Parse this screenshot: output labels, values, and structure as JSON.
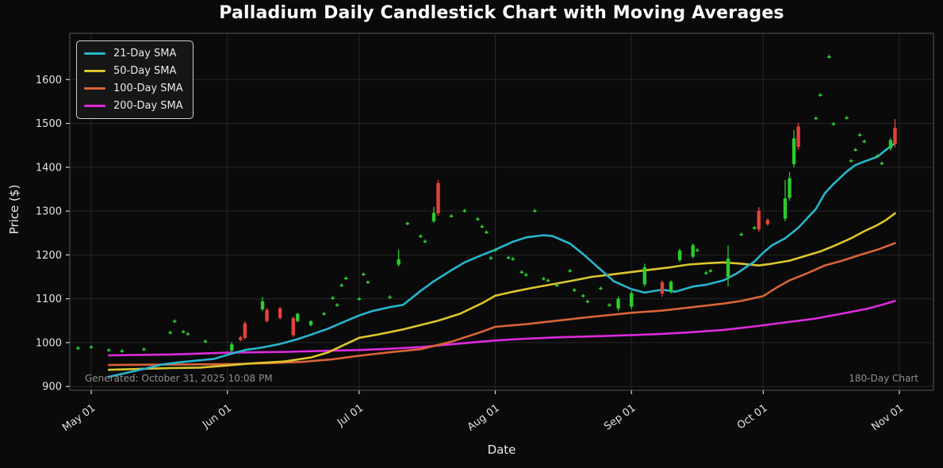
{
  "title": "Palladium Daily Candlestick Chart with Moving Averages",
  "x_axis_label": "Date",
  "y_axis_label": "Price ($)",
  "footnotes": {
    "generated": "Generated: October 31, 2025 10:08 PM",
    "duration": "180-Day Chart"
  },
  "chart_data": {
    "type": "candlestick",
    "title": "Palladium Daily Candlestick Chart with Moving Averages",
    "xlabel": "Date",
    "ylabel": "Price ($)",
    "x_ticks": [
      "May 01",
      "Jun 01",
      "Jul 01",
      "Aug 01",
      "Sep 01",
      "Oct 01",
      "Nov 01"
    ],
    "y_ticks": [
      900,
      1000,
      1100,
      1200,
      1300,
      1400,
      1500,
      1600
    ],
    "ylim": [
      890,
      1700
    ],
    "grid": true,
    "legend_position": "upper-left",
    "background": "#0a0a0a",
    "colors": {
      "up": "#2dcc2d",
      "down": "#e4423a",
      "grid": "#262626",
      "spine": "#555555",
      "tick": "#d8d8d8",
      "tick_label": "#e2e2e2"
    },
    "candle_format": [
      "date",
      "open",
      "high",
      "low",
      "close"
    ],
    "candles": [
      [
        "Apr 28",
        988,
        992,
        983,
        989
      ],
      [
        "May 01",
        990,
        994,
        986,
        991
      ],
      [
        "May 05",
        983,
        987,
        979,
        984
      ],
      [
        "May 08",
        981,
        985,
        977,
        982
      ],
      [
        "May 13",
        985,
        989,
        981,
        986
      ],
      [
        "May 19",
        1023,
        1027,
        1019,
        1024
      ],
      [
        "May 20",
        1049,
        1053,
        1045,
        1050
      ],
      [
        "May 22",
        1025,
        1029,
        1021,
        1026
      ],
      [
        "May 23",
        1020,
        1024,
        1016,
        1021
      ],
      [
        "May 27",
        1003,
        1007,
        999,
        1004
      ],
      [
        "Jun 02",
        982,
        1001,
        978,
        996
      ],
      [
        "Jun 04",
        1012,
        1016,
        1003,
        1006
      ],
      [
        "Jun 05",
        1044,
        1049,
        1007,
        1011
      ],
      [
        "Jun 09",
        1076,
        1104,
        1072,
        1094
      ],
      [
        "Jun 10",
        1075,
        1079,
        1046,
        1049
      ],
      [
        "Jun 13",
        1078,
        1082,
        1053,
        1056
      ],
      [
        "Jun 16",
        1056,
        1060,
        1013,
        1017
      ],
      [
        "Jun 17",
        1049,
        1068,
        1046,
        1066
      ],
      [
        "Jun 20",
        1040,
        1051,
        1037,
        1049
      ],
      [
        "Jun 23",
        1066,
        1070,
        1062,
        1067
      ],
      [
        "Jun 25",
        1102,
        1106,
        1098,
        1103
      ],
      [
        "Jun 26",
        1086,
        1090,
        1082,
        1087
      ],
      [
        "Jun 27",
        1131,
        1135,
        1127,
        1132
      ],
      [
        "Jun 28",
        1147,
        1151,
        1143,
        1148
      ],
      [
        "Jul 01",
        1100,
        1104,
        1096,
        1101
      ],
      [
        "Jul 02",
        1156,
        1160,
        1152,
        1157
      ],
      [
        "Jul 03",
        1138,
        1142,
        1134,
        1139
      ],
      [
        "Jul 08",
        1104,
        1108,
        1100,
        1105
      ],
      [
        "Jul 10",
        1178,
        1212,
        1174,
        1190
      ],
      [
        "Jul 12",
        1272,
        1276,
        1268,
        1273
      ],
      [
        "Jul 15",
        1243,
        1247,
        1239,
        1244
      ],
      [
        "Jul 16",
        1231,
        1235,
        1227,
        1232
      ],
      [
        "Jul 18",
        1277,
        1310,
        1273,
        1296
      ],
      [
        "Jul 19",
        1364,
        1371,
        1289,
        1295
      ],
      [
        "Jul 22",
        1289,
        1293,
        1285,
        1290
      ],
      [
        "Jul 25",
        1301,
        1305,
        1297,
        1302
      ],
      [
        "Jul 28",
        1282,
        1286,
        1278,
        1283
      ],
      [
        "Jul 29",
        1265,
        1269,
        1261,
        1266
      ],
      [
        "Jul 30",
        1252,
        1256,
        1248,
        1253
      ],
      [
        "Jul 31",
        1193,
        1197,
        1189,
        1194
      ],
      [
        "Aug 01",
        1211,
        1215,
        1207,
        1212
      ],
      [
        "Aug 04",
        1194,
        1198,
        1190,
        1195
      ],
      [
        "Aug 05",
        1191,
        1195,
        1187,
        1192
      ],
      [
        "Aug 07",
        1161,
        1165,
        1157,
        1162
      ],
      [
        "Aug 08",
        1155,
        1159,
        1151,
        1156
      ],
      [
        "Aug 10",
        1301,
        1305,
        1297,
        1302
      ],
      [
        "Aug 12",
        1146,
        1150,
        1142,
        1147
      ],
      [
        "Aug 13",
        1142,
        1146,
        1138,
        1143
      ],
      [
        "Aug 15",
        1131,
        1135,
        1127,
        1132
      ],
      [
        "Aug 18",
        1164,
        1168,
        1160,
        1165
      ],
      [
        "Aug 19",
        1120,
        1124,
        1116,
        1121
      ],
      [
        "Aug 21",
        1107,
        1111,
        1103,
        1108
      ],
      [
        "Aug 22",
        1094,
        1098,
        1090,
        1095
      ],
      [
        "Aug 25",
        1124,
        1128,
        1120,
        1125
      ],
      [
        "Aug 27",
        1086,
        1090,
        1082,
        1087
      ],
      [
        "Aug 29",
        1078,
        1105,
        1072,
        1100
      ],
      [
        "Sep 01",
        1082,
        1118,
        1076,
        1113
      ],
      [
        "Sep 04",
        1133,
        1180,
        1128,
        1172
      ],
      [
        "Sep 08",
        1138,
        1142,
        1104,
        1112
      ],
      [
        "Sep 10",
        1117,
        1142,
        1112,
        1139
      ],
      [
        "Sep 12",
        1188,
        1214,
        1184,
        1210
      ],
      [
        "Sep 15",
        1196,
        1226,
        1192,
        1222
      ],
      [
        "Sep 16",
        1211,
        1215,
        1207,
        1212
      ],
      [
        "Sep 18",
        1159,
        1163,
        1155,
        1160
      ],
      [
        "Sep 19",
        1164,
        1168,
        1160,
        1165
      ],
      [
        "Sep 23",
        1150,
        1222,
        1128,
        1192
      ],
      [
        "Sep 26",
        1247,
        1251,
        1243,
        1248
      ],
      [
        "Sep 29",
        1262,
        1266,
        1258,
        1263
      ],
      [
        "Sep 30",
        1301,
        1309,
        1253,
        1258
      ],
      [
        "Oct 02",
        1280,
        1283,
        1267,
        1270
      ],
      [
        "Oct 06",
        1283,
        1371,
        1277,
        1329
      ],
      [
        "Oct 07",
        1330,
        1389,
        1324,
        1375
      ],
      [
        "Oct 08",
        1407,
        1485,
        1400,
        1466
      ],
      [
        "Oct 09",
        1493,
        1501,
        1440,
        1447
      ],
      [
        "Oct 13",
        1512,
        1516,
        1508,
        1513
      ],
      [
        "Oct 14",
        1565,
        1569,
        1561,
        1566
      ],
      [
        "Oct 16",
        1652,
        1657,
        1648,
        1653
      ],
      [
        "Oct 17",
        1499,
        1503,
        1495,
        1500
      ],
      [
        "Oct 20",
        1513,
        1517,
        1509,
        1514
      ],
      [
        "Oct 21",
        1415,
        1419,
        1411,
        1416
      ],
      [
        "Oct 22",
        1440,
        1444,
        1436,
        1441
      ],
      [
        "Oct 23",
        1474,
        1478,
        1470,
        1475
      ],
      [
        "Oct 24",
        1459,
        1463,
        1455,
        1460
      ],
      [
        "Oct 27",
        1426,
        1430,
        1422,
        1427
      ],
      [
        "Oct 28",
        1409,
        1413,
        1405,
        1410
      ],
      [
        "Oct 30",
        1443,
        1467,
        1438,
        1462
      ],
      [
        "Oct 31",
        1490,
        1510,
        1445,
        1453
      ]
    ],
    "series": [
      {
        "name": "21-Day SMA",
        "color": "#26b6ce",
        "points": [
          [
            "May 05",
            922
          ],
          [
            "May 09",
            931
          ],
          [
            "May 13",
            940
          ],
          [
            "May 17",
            950
          ],
          [
            "May 21",
            955
          ],
          [
            "May 25",
            959
          ],
          [
            "May 29",
            963
          ],
          [
            "Jun 01",
            972
          ],
          [
            "Jun 05",
            983
          ],
          [
            "Jun 09",
            989
          ],
          [
            "Jun 13",
            997
          ],
          [
            "Jun 17",
            1008
          ],
          [
            "Jun 20",
            1018
          ],
          [
            "Jun 24",
            1032
          ],
          [
            "Jun 27",
            1045
          ],
          [
            "Jul 01",
            1062
          ],
          [
            "Jul 04",
            1072
          ],
          [
            "Jul 08",
            1081
          ],
          [
            "Jul 11",
            1086
          ],
          [
            "Jul 15",
            1118
          ],
          [
            "Jul 18",
            1140
          ],
          [
            "Jul 22",
            1165
          ],
          [
            "Jul 25",
            1183
          ],
          [
            "Jul 29",
            1200
          ],
          [
            "Aug 01",
            1212
          ],
          [
            "Aug 05",
            1230
          ],
          [
            "Aug 08",
            1240
          ],
          [
            "Aug 12",
            1245
          ],
          [
            "Aug 14",
            1243
          ],
          [
            "Aug 18",
            1226
          ],
          [
            "Aug 21",
            1202
          ],
          [
            "Aug 24",
            1175
          ],
          [
            "Aug 28",
            1140
          ],
          [
            "Sep 01",
            1122
          ],
          [
            "Sep 04",
            1114
          ],
          [
            "Sep 08",
            1121
          ],
          [
            "Sep 11",
            1116
          ],
          [
            "Sep 15",
            1128
          ],
          [
            "Sep 18",
            1132
          ],
          [
            "Sep 22",
            1142
          ],
          [
            "Sep 25",
            1158
          ],
          [
            "Sep 29",
            1185
          ],
          [
            "Oct 01",
            1205
          ],
          [
            "Oct 03",
            1222
          ],
          [
            "Oct 06",
            1238
          ],
          [
            "Oct 09",
            1262
          ],
          [
            "Oct 13",
            1305
          ],
          [
            "Oct 15",
            1340
          ],
          [
            "Oct 17",
            1362
          ],
          [
            "Oct 20",
            1390
          ],
          [
            "Oct 22",
            1405
          ],
          [
            "Oct 24",
            1413
          ],
          [
            "Oct 27",
            1424
          ],
          [
            "Oct 29",
            1440
          ],
          [
            "Oct 31",
            1455
          ]
        ]
      },
      {
        "name": "50-Day SMA",
        "color": "#dcc62d",
        "points": [
          [
            "May 05",
            938
          ],
          [
            "May 12",
            940
          ],
          [
            "May 19",
            942
          ],
          [
            "May 26",
            943
          ],
          [
            "Jun 01",
            948
          ],
          [
            "Jun 07",
            953
          ],
          [
            "Jun 14",
            957
          ],
          [
            "Jun 20",
            966
          ],
          [
            "Jun 24",
            978
          ],
          [
            "Jul 01",
            1011
          ],
          [
            "Jul 05",
            1018
          ],
          [
            "Jul 11",
            1030
          ],
          [
            "Jul 15",
            1040
          ],
          [
            "Jul 19",
            1050
          ],
          [
            "Jul 24",
            1066
          ],
          [
            "Jul 29",
            1090
          ],
          [
            "Aug 01",
            1107
          ],
          [
            "Aug 05",
            1116
          ],
          [
            "Aug 09",
            1124
          ],
          [
            "Aug 14",
            1133
          ],
          [
            "Aug 19",
            1142
          ],
          [
            "Aug 23",
            1150
          ],
          [
            "Aug 28",
            1156
          ],
          [
            "Sep 01",
            1161
          ],
          [
            "Sep 05",
            1166
          ],
          [
            "Sep 10",
            1172
          ],
          [
            "Sep 14",
            1178
          ],
          [
            "Sep 18",
            1181
          ],
          [
            "Sep 22",
            1183
          ],
          [
            "Sep 26",
            1180
          ],
          [
            "Sep 30",
            1176
          ],
          [
            "Oct 03",
            1180
          ],
          [
            "Oct 07",
            1187
          ],
          [
            "Oct 10",
            1196
          ],
          [
            "Oct 14",
            1208
          ],
          [
            "Oct 17",
            1220
          ],
          [
            "Oct 21",
            1238
          ],
          [
            "Oct 24",
            1254
          ],
          [
            "Oct 27",
            1268
          ],
          [
            "Oct 29",
            1280
          ],
          [
            "Oct 31",
            1295
          ]
        ]
      },
      {
        "name": "100-Day SMA",
        "color": "#d96438",
        "points": [
          [
            "May 05",
            949
          ],
          [
            "May 19",
            950
          ],
          [
            "Jun 01",
            951
          ],
          [
            "Jun 10",
            953
          ],
          [
            "Jun 18",
            956
          ],
          [
            "Jun 25",
            962
          ],
          [
            "Jul 01",
            970
          ],
          [
            "Jul 08",
            978
          ],
          [
            "Jul 15",
            985
          ],
          [
            "Jul 22",
            1002
          ],
          [
            "Jul 29",
            1025
          ],
          [
            "Aug 01",
            1036
          ],
          [
            "Aug 08",
            1042
          ],
          [
            "Aug 15",
            1050
          ],
          [
            "Aug 22",
            1058
          ],
          [
            "Sep 01",
            1068
          ],
          [
            "Sep 08",
            1073
          ],
          [
            "Sep 15",
            1081
          ],
          [
            "Sep 22",
            1089
          ],
          [
            "Sep 26",
            1095
          ],
          [
            "Oct 01",
            1106
          ],
          [
            "Oct 04",
            1125
          ],
          [
            "Oct 07",
            1142
          ],
          [
            "Oct 11",
            1158
          ],
          [
            "Oct 15",
            1176
          ],
          [
            "Oct 19",
            1187
          ],
          [
            "Oct 23",
            1200
          ],
          [
            "Oct 27",
            1212
          ],
          [
            "Oct 31",
            1227
          ]
        ]
      },
      {
        "name": "200-Day SMA",
        "color": "#dd2add",
        "points": [
          [
            "May 05",
            971
          ],
          [
            "May 12",
            972
          ],
          [
            "May 19",
            973
          ],
          [
            "May 26",
            975
          ],
          [
            "Jun 01",
            977
          ],
          [
            "Jun 08",
            978
          ],
          [
            "Jun 15",
            979
          ],
          [
            "Jun 22",
            981
          ],
          [
            "Jul 01",
            983
          ],
          [
            "Jul 08",
            986
          ],
          [
            "Jul 15",
            990
          ],
          [
            "Jul 22",
            996
          ],
          [
            "Aug 01",
            1005
          ],
          [
            "Aug 08",
            1009
          ],
          [
            "Aug 15",
            1012
          ],
          [
            "Aug 22",
            1014
          ],
          [
            "Sep 01",
            1017
          ],
          [
            "Sep 08",
            1020
          ],
          [
            "Sep 15",
            1024
          ],
          [
            "Sep 22",
            1029
          ],
          [
            "Sep 29",
            1037
          ],
          [
            "Oct 06",
            1046
          ],
          [
            "Oct 13",
            1055
          ],
          [
            "Oct 20",
            1068
          ],
          [
            "Oct 25",
            1078
          ],
          [
            "Oct 28",
            1086
          ],
          [
            "Oct 31",
            1095
          ]
        ]
      }
    ]
  }
}
